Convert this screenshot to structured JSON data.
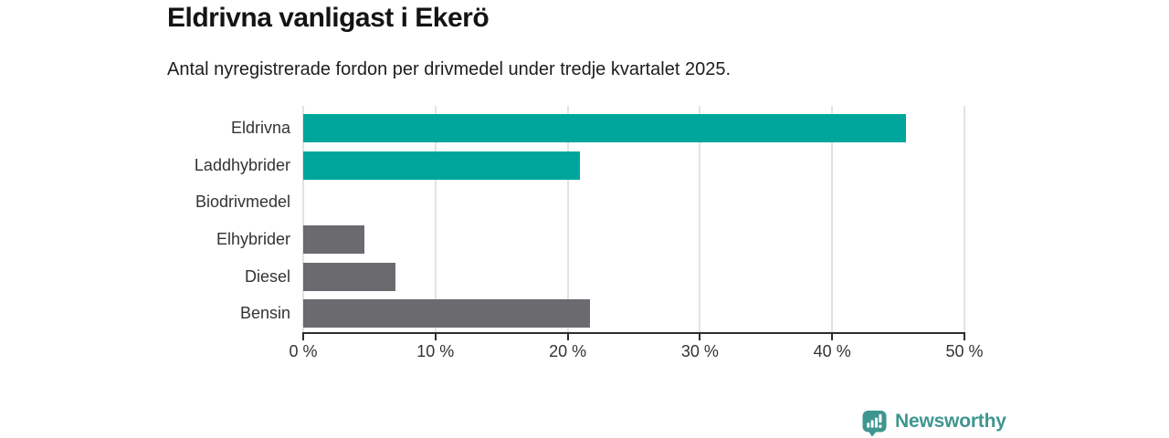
{
  "header": {
    "title": "Eldrivna vanligast i Ekerö",
    "subtitle": "Antal nyregistrerade fordon per drivmedel under tredje kvartalet 2025."
  },
  "chart_data": {
    "type": "bar",
    "orientation": "horizontal",
    "title": "Eldrivna vanligast i Ekerö",
    "subtitle": "Antal nyregistrerade fordon per drivmedel under tredje kvartalet 2025.",
    "categories": [
      "Eldrivna",
      "Laddhybrider",
      "Biodrivmedel",
      "Elhybrider",
      "Diesel",
      "Bensin"
    ],
    "values": [
      45.6,
      20.9,
      0,
      4.6,
      7.0,
      21.7
    ],
    "unit": "%",
    "xlabel": "",
    "ylabel": "",
    "xlim": [
      0,
      50
    ],
    "x_ticks": [
      0,
      10,
      20,
      30,
      40,
      50
    ],
    "x_tick_labels": [
      "0 %",
      "10 %",
      "20 %",
      "30 %",
      "40 %",
      "50 %"
    ],
    "bar_colors": [
      "#00a69b",
      "#00a69b",
      "#6a6a6f",
      "#6a6a6f",
      "#6a6a6f",
      "#6a6a6f"
    ],
    "colors": {
      "highlight": "#00a69b",
      "default": "#6a6a6f",
      "gridline": "#e3e3e3",
      "axis": "#2e2e2e",
      "text": "#333333"
    },
    "grid": true,
    "legend": false,
    "value_labels": false
  },
  "footer": {
    "brand": "Newsworthy",
    "brand_color": "#3e968f",
    "logo_icon": "newsworthy-speech-bubble-barchart-icon"
  }
}
